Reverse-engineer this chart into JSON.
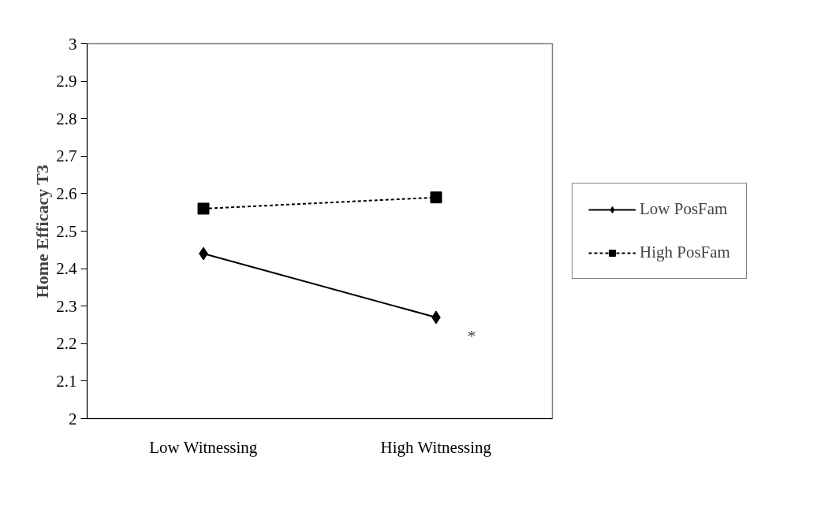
{
  "chart_data": {
    "type": "line",
    "ylabel": "Home Efficacy T3",
    "categories": [
      "Low Witnessing",
      "High Witnessing"
    ],
    "series": [
      {
        "name": "Low PosFam",
        "color": "#000000",
        "values": [
          2.44,
          2.27
        ],
        "marker": "diamond",
        "line_style": "solid"
      },
      {
        "name": "High PosFam",
        "color": "#000000",
        "values": [
          2.56,
          2.59
        ],
        "marker": "square",
        "line_style": "dashed"
      }
    ],
    "ylim": [
      2,
      3
    ],
    "yticks": [
      2,
      2.1,
      2.2,
      2.3,
      2.4,
      2.5,
      2.6,
      2.7,
      2.8,
      2.9,
      3
    ],
    "annotations": [
      "*"
    ],
    "grid": false,
    "legend": "right"
  }
}
